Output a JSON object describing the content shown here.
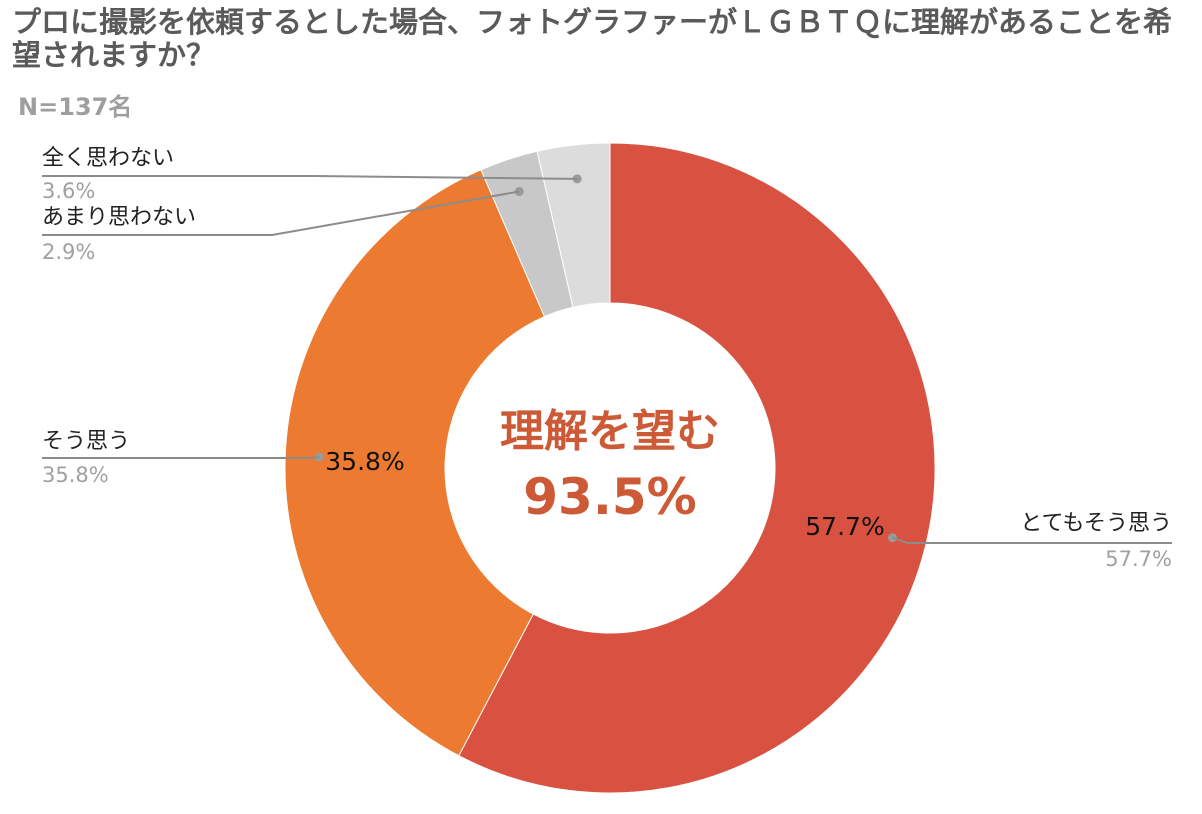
{
  "title": "プロに撮影を依頼するとした場合、フォトグラファーがＬＧＢＴＱに理解があることを希望されますか？",
  "subtitle": "N=137名",
  "colors": {
    "title": "#5a5a5a",
    "subtitle": "#9e9e9e",
    "accent": "#cc5a36",
    "leader_line": "#8c8c8c"
  },
  "chart_data": {
    "type": "pie",
    "donut": true,
    "title": "プロに撮影を依頼するとした場合、フォトグラファーがＬＧＢＴＱに理解があることを希望されますか？",
    "subtitle": "N=137名",
    "center_label": "理解を望む",
    "center_value": "93.5%",
    "slices": [
      {
        "name": "とてもそう思う",
        "value": 57.7,
        "label": "57.7%",
        "color": "#d95140",
        "show_inner_label": true
      },
      {
        "name": "そう思う",
        "value": 35.8,
        "label": "35.8%",
        "color": "#ec7a30",
        "show_inner_label": true
      },
      {
        "name": "あまり思わない",
        "value": 2.9,
        "label": "2.9%",
        "color": "#c8c8c8",
        "show_inner_label": false
      },
      {
        "name": "全く思わない",
        "value": 3.6,
        "label": "3.6%",
        "color": "#dcdcdc",
        "show_inner_label": false
      }
    ],
    "start_angle_deg": 0,
    "direction": "clockwise",
    "legend": "none"
  }
}
